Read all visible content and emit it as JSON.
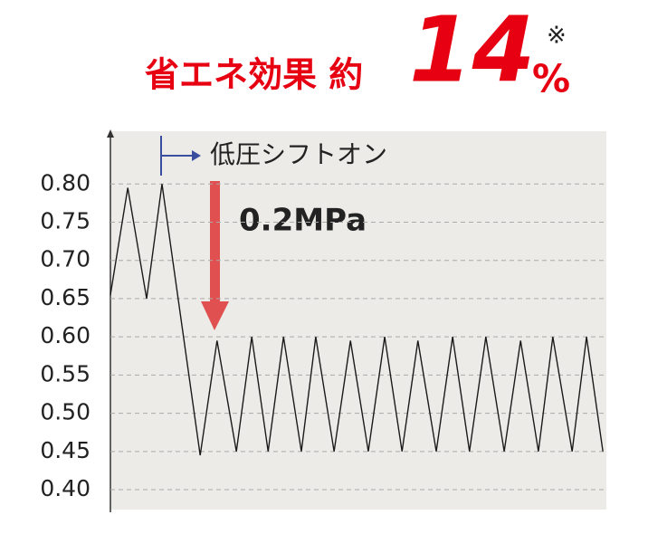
{
  "chart_data": {
    "type": "line",
    "title": "省エネ効果 約",
    "headline_value": "14",
    "headline_unit": "%",
    "footnote_mark": "※",
    "annotations": [
      "低圧シフトオン",
      "0.2MPa"
    ],
    "x": [
      0,
      3.5,
      7.3,
      10.4,
      18.1,
      21.5,
      25.4,
      28.5,
      31.8,
      34.9,
      38.5,
      41.4,
      45.1,
      48.4,
      52.0,
      55.3,
      58.8,
      62.0,
      65.7,
      69.0,
      72.4,
      75.7,
      79.4,
      82.7,
      86.3,
      89.2,
      93.1,
      96.0,
      99.3
    ],
    "xlim": [
      0,
      100
    ],
    "series": [
      {
        "color": "#1a1a1a",
        "values": [
          0.655,
          0.795,
          0.65,
          0.8,
          0.445,
          0.595,
          0.45,
          0.6,
          0.45,
          0.6,
          0.45,
          0.6,
          0.45,
          0.595,
          0.45,
          0.6,
          0.45,
          0.595,
          0.45,
          0.6,
          0.45,
          0.6,
          0.45,
          0.595,
          0.45,
          0.6,
          0.45,
          0.6,
          0.45
        ]
      }
    ],
    "ylim": [
      0.374,
      0.869
    ],
    "yticks": [
      {
        "value": 0.4,
        "label": "0.40"
      },
      {
        "value": 0.45,
        "label": "0.45"
      },
      {
        "value": 0.5,
        "label": "0.50"
      },
      {
        "value": 0.55,
        "label": "0.55"
      },
      {
        "value": 0.6,
        "label": "0.60"
      },
      {
        "value": 0.65,
        "label": "0.65"
      },
      {
        "value": 0.7,
        "label": "0.70"
      },
      {
        "value": 0.75,
        "label": "0.75"
      },
      {
        "value": 0.8,
        "label": "0.80"
      }
    ],
    "grid": true
  }
}
